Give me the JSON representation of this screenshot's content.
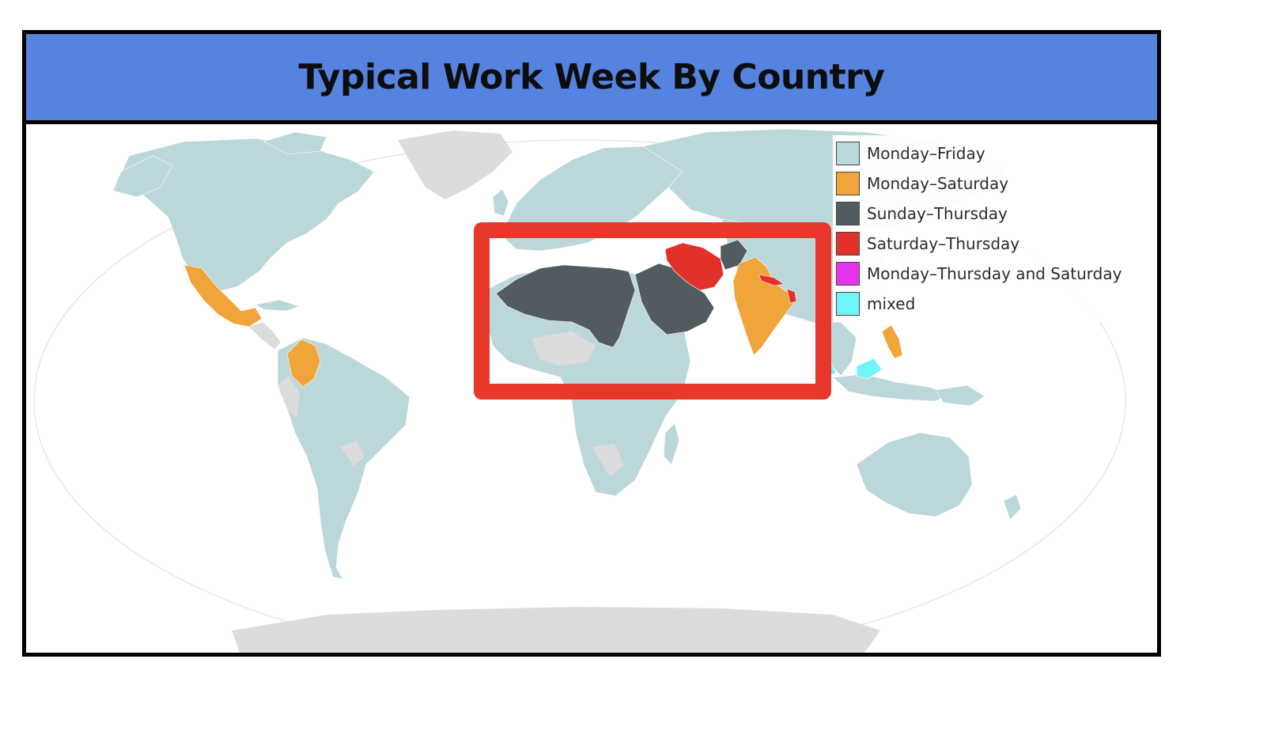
{
  "title": "Typical Work Week By Country",
  "colors": {
    "title_bar": "#5682e0",
    "highlight": "#e8382c",
    "no_data": "#dcdcdc",
    "ocean": "#ffffff"
  },
  "legend": {
    "items": [
      {
        "label": "Monday–Friday",
        "color": "#bcd7da"
      },
      {
        "label": "Monday–Saturday",
        "color": "#f0a53a"
      },
      {
        "label": "Sunday–Thursday",
        "color": "#525b60"
      },
      {
        "label": "Saturday–Thursday",
        "color": "#e2302a"
      },
      {
        "label": "Monday–Thursday and Saturday",
        "color": "#e833ee"
      },
      {
        "label": "mixed",
        "color": "#6ff5f7"
      }
    ]
  },
  "highlight": {
    "region": "Middle East and North Africa",
    "shape": "red-rectangle-outline"
  }
}
